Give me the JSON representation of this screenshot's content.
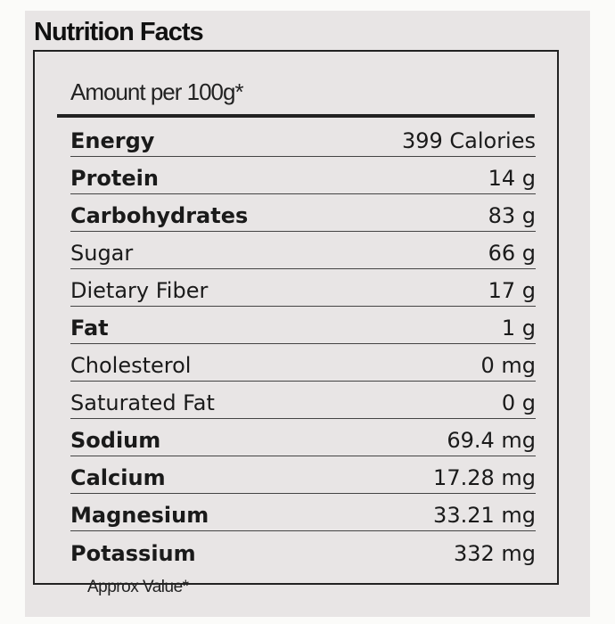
{
  "title": "Nutrition Facts",
  "serving": "Amount per 100g*",
  "rows": [
    {
      "name": "Energy",
      "value": "399 Calories",
      "bold": true
    },
    {
      "name": "Protein",
      "value": "14 g",
      "bold": true
    },
    {
      "name": "Carbohydrates",
      "value": "83 g",
      "bold": true
    },
    {
      "name": "Sugar",
      "value": "66 g",
      "bold": false
    },
    {
      "name": "Dietary Fiber",
      "value": "17 g",
      "bold": false
    },
    {
      "name": "Fat",
      "value": "1 g",
      "bold": true
    },
    {
      "name": "Cholesterol",
      "value": "0 mg",
      "bold": false
    },
    {
      "name": "Saturated Fat",
      "value": "0 g",
      "bold": false
    },
    {
      "name": "Sodium",
      "value": "69.4 mg",
      "bold": true
    },
    {
      "name": "Calcium",
      "value": "17.28 mg",
      "bold": true
    },
    {
      "name": "Magnesium",
      "value": "33.21 mg",
      "bold": true
    },
    {
      "name": "Potassium",
      "value": "332 mg",
      "bold": true
    }
  ],
  "footnote": "Approx Value*"
}
